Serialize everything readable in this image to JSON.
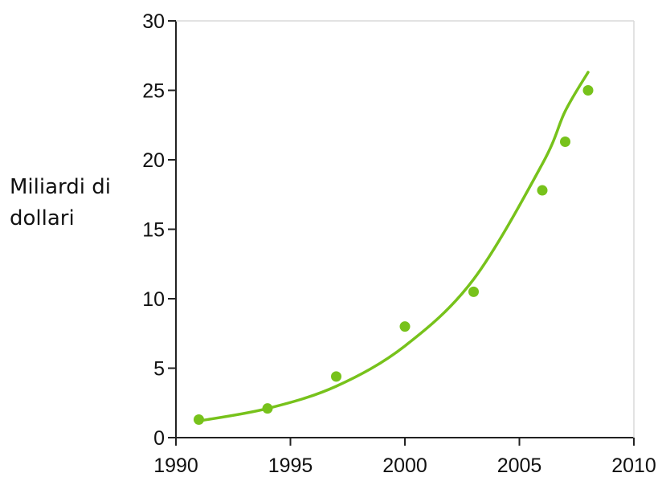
{
  "chart_data": {
    "type": "scatter",
    "xlabel": "",
    "ylabel_lines": [
      "Miliardi di",
      "dollari"
    ],
    "xlim": [
      1990,
      2010
    ],
    "ylim": [
      0,
      30
    ],
    "x_ticks": [
      1990,
      1995,
      2000,
      2005,
      2010
    ],
    "y_ticks": [
      0,
      5,
      10,
      15,
      20,
      25,
      30
    ],
    "x_tick_labels": [
      "1990",
      "1995",
      "2000",
      "2005",
      "2010"
    ],
    "y_tick_labels": [
      "0",
      "5",
      "10",
      "15",
      "20",
      "25",
      "30"
    ],
    "grid": false,
    "series": [
      {
        "kind": "points",
        "color": "#77c21b",
        "points": [
          {
            "x": 1991,
            "y": 1.3
          },
          {
            "x": 1994,
            "y": 2.1
          },
          {
            "x": 1997,
            "y": 4.4
          },
          {
            "x": 2000,
            "y": 8.0
          },
          {
            "x": 2003,
            "y": 10.5
          },
          {
            "x": 2006,
            "y": 17.8
          },
          {
            "x": 2007,
            "y": 21.3
          },
          {
            "x": 2008,
            "y": 25.0
          }
        ]
      },
      {
        "kind": "trendline",
        "fit": "exponential",
        "color": "#77c21b",
        "points": [
          {
            "x": 1991,
            "y": 1.2
          },
          {
            "x": 1994,
            "y": 2.1
          },
          {
            "x": 1997,
            "y": 3.7
          },
          {
            "x": 2000,
            "y": 6.6
          },
          {
            "x": 2003,
            "y": 11.4
          },
          {
            "x": 2006,
            "y": 19.7
          },
          {
            "x": 2007,
            "y": 23.5
          },
          {
            "x": 2008,
            "y": 26.3
          }
        ]
      }
    ]
  }
}
